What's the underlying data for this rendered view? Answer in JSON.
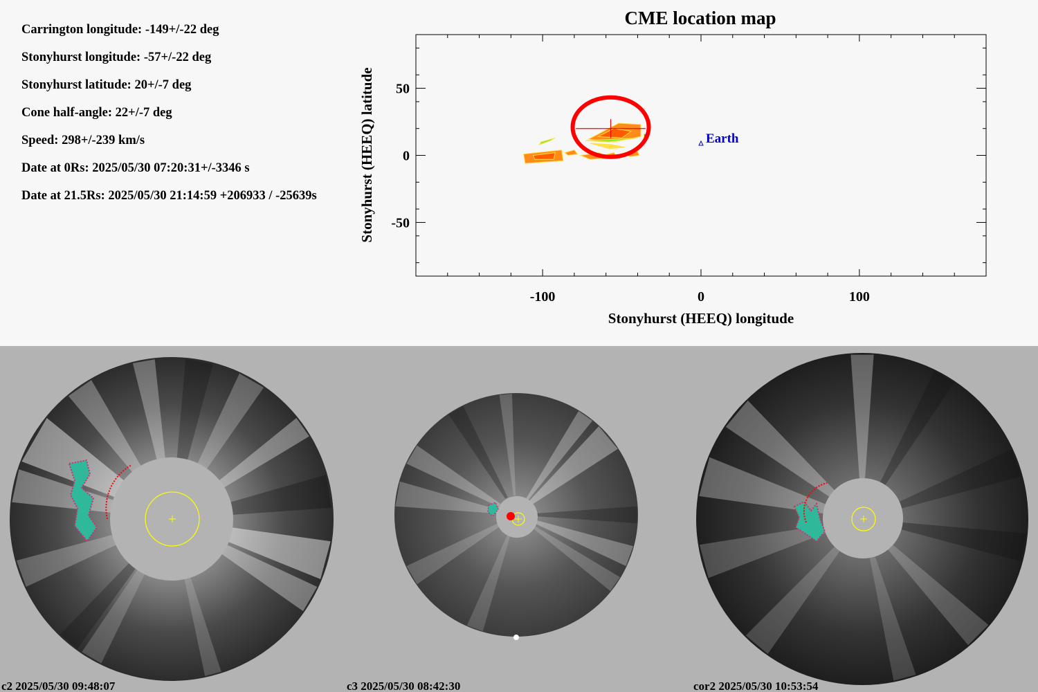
{
  "parameters": {
    "carrington_longitude": "Carrington longitude: -149+/-22 deg",
    "stonyhurst_longitude": "Stonyhurst longitude: -57+/-22 deg",
    "stonyhurst_latitude": "Stonyhurst latitude: 20+/-7 deg",
    "cone_half_angle": "Cone half-angle: 22+/-7 deg",
    "speed": "Speed: 298+/-239 km/s",
    "date_0rs": "Date at 0Rs: 2025/05/30 07:20:31+/-3346 s",
    "date_21_5rs": "Date at 21.5Rs: 2025/05/30 21:14:59 +206933 / -25639s"
  },
  "chart_data": {
    "type": "scatter",
    "title": "CME location map",
    "xlabel": "Stonyhurst (HEEQ) longitude",
    "ylabel": "Stonyhurst (HEEQ) latitude",
    "xlim": [
      -180,
      180
    ],
    "ylim": [
      -90,
      90
    ],
    "x_ticks": [
      -100,
      0,
      100
    ],
    "x_tick_labels": [
      "-100",
      "0",
      "100"
    ],
    "y_ticks": [
      50,
      0,
      -50
    ],
    "y_tick_labels": [
      "50",
      "0",
      "-50"
    ],
    "grid": false,
    "cme_estimate": {
      "longitude": -57,
      "longitude_err": 22,
      "latitude": 20,
      "latitude_err": 7,
      "marker_color": "#ff0000"
    },
    "earth": {
      "label": "Earth",
      "longitude": 0,
      "latitude": 9,
      "color": "#0000cc"
    }
  },
  "coronagraphs": [
    {
      "label": "c2 2025/05/30 09:48:07"
    },
    {
      "label": "c3 2025/05/30 08:42:30"
    },
    {
      "label": "cor2 2025/05/30 10:53:54"
    }
  ],
  "colors": {
    "cme_marker": "#ff0000",
    "earth": "#0000cc",
    "sun_outline": "#ffff00",
    "occulter": "#b3b3b3"
  }
}
